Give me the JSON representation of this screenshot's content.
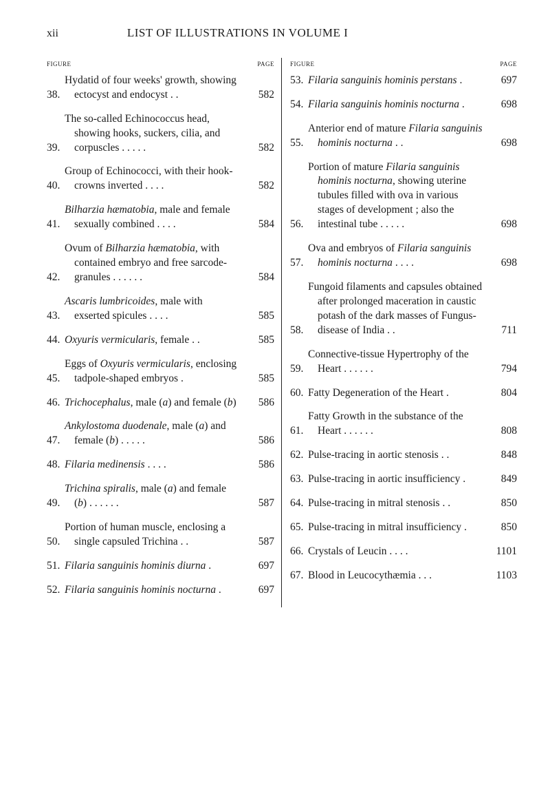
{
  "header": {
    "roman": "xii",
    "title": "LIST OF ILLUSTRATIONS IN VOLUME I"
  },
  "colhead": {
    "figure": "figure",
    "page": "page"
  },
  "left": [
    {
      "n": "38.",
      "p": "582",
      "t": "Hydatid of four weeks' growth, showing ectocyst and endocyst   .     ."
    },
    {
      "n": "39.",
      "p": "582",
      "t": "The so-called Echinococcus head, showing hooks, suckers, cilia, and corpuscles     .     .     .     .     ."
    },
    {
      "n": "40.",
      "p": "582",
      "t": "Group of Echinococci, with their hook-crowns inverted     .     .     .     ."
    },
    {
      "n": "41.",
      "p": "584",
      "t": "<span class='italic'>Bilharzia hæmatobia</span>, male and female sexually combined .     .     .     ."
    },
    {
      "n": "42.",
      "p": "584",
      "t": "Ovum of <span class='italic'>Bilharzia hæmatobia</span>, with contained embryo and free sarcode-granules .     .     .     .     .     ."
    },
    {
      "n": "43.",
      "p": "585",
      "t": "<span class='italic'>Ascaris lumbricoides</span>, male with exserted spicules     .     .     .     ."
    },
    {
      "n": "44.",
      "p": "585",
      "t": "<span class='italic'>Oxyuris vermicularis</span>, female   .     ."
    },
    {
      "n": "45.",
      "p": "585",
      "t": "Eggs of <span class='italic'>Oxyuris vermicularis</span>, enclosing tadpole-shaped embryos   ."
    },
    {
      "n": "46.",
      "p": "586",
      "t": "<span class='italic'>Trichocephalus</span>, male (<span class='italic'>a</span>) and female (<span class='italic'>b</span>)"
    },
    {
      "n": "47.",
      "p": "586",
      "t": "<span class='italic'>Ankylostoma duodenale</span>, male (<span class='italic'>a</span>) and female (<span class='italic'>b</span>)     .     .     .     .     ."
    },
    {
      "n": "48.",
      "p": "586",
      "t": "<span class='italic'>Filaria medinensis</span>    .     .     .     ."
    },
    {
      "n": "49.",
      "p": "587",
      "t": "<span class='italic'>Trichina spiralis</span>, male (<span class='italic'>a</span>) and female (<span class='italic'>b</span>) .     .     .     .     .   ."
    },
    {
      "n": "50.",
      "p": "587",
      "t": "Portion of human muscle, enclosing a single capsuled Trichina     .     ."
    },
    {
      "n": "51.",
      "p": "697",
      "t": "<span class='italic'>Filaria sanguinis hominis diurna</span>    ."
    },
    {
      "n": "52.",
      "p": "697",
      "t": "<span class='italic'>Filaria sanguinis hominis nocturna</span>  ."
    }
  ],
  "right": [
    {
      "n": "53.",
      "p": "697",
      "t": "<span class='italic'>Filaria sanguinis hominis perstans</span>   ."
    },
    {
      "n": "54.",
      "p": "698",
      "t": "<span class='italic'>Filaria sanguinis hominis nocturna</span>  ."
    },
    {
      "n": "55.",
      "p": "698",
      "t": "Anterior end of mature <span class='italic'>Filaria sanguinis hominis nocturna</span>        .     ."
    },
    {
      "n": "56.",
      "p": "698",
      "t": "Portion of mature <span class='italic'>Filaria sanguinis hominis nocturna</span>, showing uterine tubules filled with ova in various stages of development ; also the intestinal tube .     .     .     .     ."
    },
    {
      "n": "57.",
      "p": "698",
      "t": "Ova and embryos of <span class='italic'>Filaria sanguinis hominis nocturna</span> .     .     .     ."
    },
    {
      "n": "58.",
      "p": "711",
      "t": "Fungoid filaments and capsules obtained after prolonged maceration in caustic potash of the dark masses of Fungus-disease of India   .     ."
    },
    {
      "n": "59.",
      "p": "794",
      "t": "Connective-tissue Hypertrophy of the Heart     .     .     .     .     .     ."
    },
    {
      "n": "60.",
      "p": "804",
      "t": "Fatty Degeneration of the Heart      ."
    },
    {
      "n": "61.",
      "p": "808",
      "t": "Fatty Growth in the substance of the Heart     .     .     .     .     .     ."
    },
    {
      "n": "62.",
      "p": "848",
      "t": "Pulse-tracing in aortic stenosis .     ."
    },
    {
      "n": "63.",
      "p": "849",
      "t": "Pulse-tracing in aortic insufficiency  ."
    },
    {
      "n": "64.",
      "p": "850",
      "t": "Pulse-tracing in mitral stenosis .    ."
    },
    {
      "n": "65.",
      "p": "850",
      "t": "Pulse-tracing in mitral insufficiency  ."
    },
    {
      "n": "66.",
      "p": "1101",
      "t": "Crystals of Leucin    .     .     .     ."
    },
    {
      "n": "67.",
      "p": "1103",
      "t": "Blood in Leucocythæmia   .     .     ."
    }
  ]
}
